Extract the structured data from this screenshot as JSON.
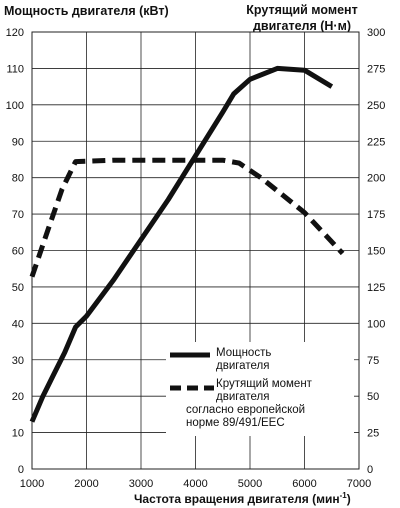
{
  "chart_data": {
    "type": "line",
    "title_left": "Мощность двигателя (кВт)",
    "title_right_line1": "Крутящий момент",
    "title_right_line2": "двигателя (Н·м)",
    "xlabel": "Частота вращения двигателя (мин",
    "xlabel_sup": "-1",
    "xlabel_close": ")",
    "xlim": [
      1000,
      7000
    ],
    "xticks": [
      1000,
      2000,
      3000,
      4000,
      5000,
      6000,
      7000
    ],
    "ylim_left": [
      0,
      120
    ],
    "yticks_left": [
      0,
      10,
      20,
      30,
      40,
      50,
      60,
      70,
      80,
      90,
      100,
      110,
      120
    ],
    "ylim_right": [
      0,
      300
    ],
    "yticks_right": [
      0,
      25,
      50,
      75,
      100,
      125,
      150,
      175,
      200,
      225,
      250,
      275,
      300
    ],
    "grid": true,
    "series": [
      {
        "name_line1": "Мощность",
        "name_line2": "двигателя",
        "axis": "left",
        "style": "solid",
        "points": [
          [
            1000,
            13
          ],
          [
            1200,
            20
          ],
          [
            1400,
            26
          ],
          [
            1600,
            32
          ],
          [
            1800,
            39
          ],
          [
            2000,
            42
          ],
          [
            2500,
            52
          ],
          [
            3000,
            63
          ],
          [
            3500,
            74
          ],
          [
            4000,
            86
          ],
          [
            4500,
            98
          ],
          [
            4700,
            103
          ],
          [
            5000,
            107
          ],
          [
            5500,
            110
          ],
          [
            6000,
            109.5
          ],
          [
            6500,
            105
          ]
        ]
      },
      {
        "name_line1": "Крутящий момент",
        "name_line2": "двигателя",
        "name_line3": "согласно европейской",
        "name_line4": "норме 89/491/EEC",
        "axis": "right",
        "style": "dashed",
        "points": [
          [
            1000,
            132
          ],
          [
            1300,
            165
          ],
          [
            1550,
            192
          ],
          [
            1800,
            211
          ],
          [
            2500,
            212
          ],
          [
            3500,
            212
          ],
          [
            4500,
            212
          ],
          [
            4800,
            210
          ],
          [
            5200,
            200
          ],
          [
            5600,
            188
          ],
          [
            6000,
            176
          ],
          [
            6400,
            160
          ],
          [
            6700,
            148
          ]
        ]
      }
    ],
    "legend_position": "lower-right"
  },
  "colors": {
    "line": "#111111",
    "grid": "#222222",
    "background": "#ffffff"
  }
}
